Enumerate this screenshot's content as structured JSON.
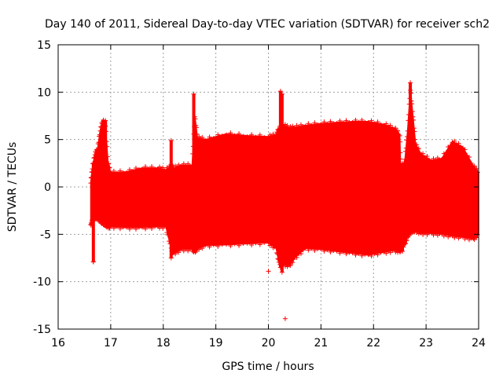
{
  "chart_data": {
    "type": "scatter",
    "title": "Day 140 of 2011, Sidereal Day-to-day VTEC variation (SDTVAR) for receiver sch2",
    "xlabel": "GPS time / hours",
    "ylabel": "SDTVAR / TECUs",
    "xlim": [
      16,
      24
    ],
    "ylim": [
      -15,
      15
    ],
    "xticks": [
      16,
      17,
      18,
      19,
      20,
      21,
      22,
      23,
      24
    ],
    "yticks": [
      -15,
      -10,
      -5,
      0,
      5,
      10,
      15
    ],
    "grid": true,
    "marker": "+",
    "series_color": "#ff0000",
    "envelope": {
      "x": [
        16.62,
        16.65,
        16.7,
        16.75,
        16.8,
        16.85,
        16.9,
        16.95,
        17.0,
        17.3,
        17.6,
        17.9,
        18.05,
        18.15,
        18.2,
        18.35,
        18.55,
        18.6,
        18.65,
        18.8,
        19.2,
        19.6,
        20.0,
        20.15,
        20.2,
        20.3,
        20.4,
        20.5,
        20.7,
        21.0,
        21.3,
        21.6,
        21.9,
        22.2,
        22.4,
        22.5,
        22.52,
        22.6,
        22.65,
        22.7,
        22.75,
        22.8,
        22.9,
        23.1,
        23.3,
        23.5,
        23.7,
        23.9,
        24.0
      ],
      "upper": [
        0.5,
        2.0,
        3.5,
        4.0,
        6.0,
        7.0,
        6.5,
        2.5,
        1.5,
        1.6,
        2.0,
        2.0,
        1.8,
        2.2,
        2.0,
        2.3,
        2.3,
        7.5,
        5.2,
        5.0,
        5.6,
        5.4,
        5.3,
        5.5,
        6.2,
        6.5,
        6.2,
        6.3,
        6.5,
        6.7,
        6.8,
        6.9,
        6.9,
        6.6,
        6.2,
        5.5,
        1.0,
        3.0,
        6.0,
        10.3,
        7.5,
        4.5,
        3.5,
        2.8,
        3.0,
        4.8,
        4.2,
        2.2,
        1.5
      ],
      "lower": [
        -4.0,
        -3.5,
        -3.2,
        -3.3,
        -3.6,
        -3.8,
        -4.0,
        -4.2,
        -4.2,
        -4.3,
        -4.3,
        -4.2,
        -4.2,
        -6.5,
        -7.0,
        -6.6,
        -6.6,
        -6.8,
        -6.5,
        -6.2,
        -6.1,
        -6.0,
        -5.9,
        -6.5,
        -8.0,
        -8.2,
        -8.3,
        -7.5,
        -6.5,
        -6.6,
        -6.8,
        -7.0,
        -7.2,
        -6.9,
        -6.7,
        -6.8,
        -6.5,
        -6.0,
        -5.2,
        -4.8,
        -4.6,
        -4.6,
        -4.9,
        -4.9,
        -5.0,
        -5.2,
        -5.3,
        -5.5,
        -5.0
      ]
    },
    "spikes": [
      {
        "x": 16.67,
        "top": 2.5,
        "bottom": -7.9
      },
      {
        "x": 16.9,
        "top": 7.0,
        "bottom": -4.0
      },
      {
        "x": 18.15,
        "top": 4.9,
        "bottom": -7.5
      },
      {
        "x": 18.58,
        "top": 9.8,
        "bottom": -5.0
      },
      {
        "x": 20.23,
        "top": 10.1,
        "bottom": -8.5
      },
      {
        "x": 20.26,
        "top": 9.8,
        "bottom": -9.0
      },
      {
        "x": 22.7,
        "top": 11.0,
        "bottom": -4.5
      },
      {
        "x": 22.55,
        "top": 2.5,
        "bottom": -6.8
      }
    ],
    "outliers": [
      {
        "x": 16.67,
        "y": -7.9
      },
      {
        "x": 20.0,
        "y": -8.9
      },
      {
        "x": 20.32,
        "y": -13.9
      }
    ]
  }
}
